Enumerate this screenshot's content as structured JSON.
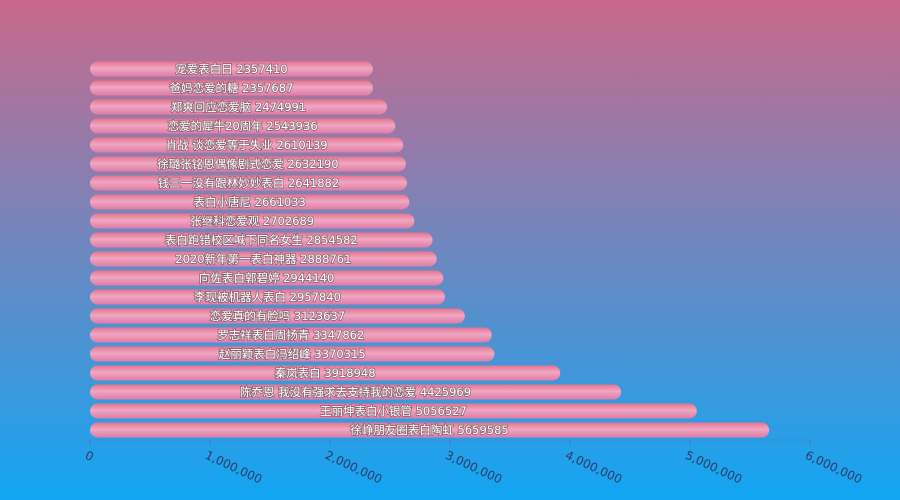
{
  "chart_data": {
    "type": "bar",
    "orientation": "horizontal",
    "categories": [
      "徐峥朋友圈表白陶虹",
      "王丽坤表白小银管",
      "陈乔恩 我没有强求去支持我的恋爱",
      "秦岚表白",
      "赵丽颖表白冯绍峰",
      "罗志祥表白周扬青",
      "恋爱真的有脸吗",
      "李现被机器人表白",
      "向佐表白郭碧婷",
      "2020新年第一表白神器",
      "表白跑错校区喊下同名女生",
      "张继科恋爱观",
      "表白小唐尼",
      "钱三一没有跟林妙妙表白",
      "徐璐张铭恩偶像剧式恋爱",
      "肖战 谈恋爱等于失业",
      "恋爱的犀牛20周年",
      "郑爽回应恋爱脑",
      "爸妈恋爱的糖",
      "宠爱表白日"
    ],
    "values": [
      5659585,
      5056527,
      4425969,
      3918948,
      3370315,
      3347862,
      3123637,
      2957840,
      2944140,
      2888761,
      2854582,
      2702689,
      2661033,
      2641882,
      2632190,
      2610139,
      2543936,
      2474991,
      2357687,
      2357410
    ],
    "data_labels": [
      "徐峥朋友圈表白陶虹 5659585",
      "王丽坤表白小银管 5056527",
      "陈乔恩 我没有强求去支持我的恋爱 4425969",
      "秦岚表白 3918948",
      "赵丽颖表白冯绍峰 3370315",
      "罗志祥表白周扬青 3347862",
      "恋爱真的有脸吗 3123637",
      "李现被机器人表白 2957840",
      "向佐表白郭碧婷 2944140",
      "2020新年第一表白神器 2888761",
      "表白跑错校区喊下同名女生 2854582",
      "张继科恋爱观 2702689",
      "表白小唐尼 2661033",
      "钱三一没有跟林妙妙表白 2641882",
      "徐璐张铭恩偶像剧式恋爱 2632190",
      "肖战 谈恋爱等于失业 2610139",
      "恋爱的犀牛20周年 2543936",
      "郑爽回应恋爱脑 2474991",
      "爸妈恋爱的糖 2357687",
      "宠爱表白日 2357410"
    ],
    "xlim": [
      0,
      6000000
    ],
    "x_ticks": [
      0,
      1000000,
      2000000,
      3000000,
      4000000,
      5000000,
      6000000
    ],
    "x_tick_labels": [
      "0",
      "1,000,000",
      "2,000,000",
      "3,000,000",
      "4,000,000",
      "5,000,000",
      "6,000,000"
    ],
    "title": "",
    "xlabel": "",
    "ylabel": "",
    "grid": false,
    "legend": "none"
  },
  "colors": {
    "background_top": "#c9698b",
    "background_bottom": "#12a6f4",
    "bar_left": "#f0a6c2",
    "bar_right": "#dd7ca6",
    "bar_top_edge": "#e4748f",
    "axis": "#5a6fb0"
  }
}
